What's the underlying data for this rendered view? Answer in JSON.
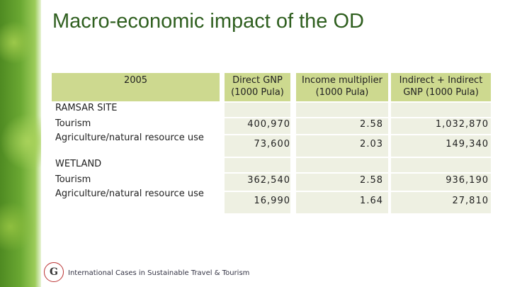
{
  "header": {
    "title": "Macro-economic impact of the OD"
  },
  "table": {
    "columns": [
      "2005",
      "Direct GNP (1000 Pula)",
      "Income multiplier (1000 Pula)",
      "Indirect + Indirect GNP (1000 Pula)"
    ],
    "sections": [
      {
        "name": "RAMSAR SITE",
        "rows": [
          {
            "label": "Tourism",
            "values": [
              "400,970",
              "2.58",
              "1,032,870"
            ]
          },
          {
            "label": "Agriculture/natural resource use",
            "values": [
              "73,600",
              "2.03",
              "149,340"
            ]
          }
        ]
      },
      {
        "name": "WETLAND",
        "rows": [
          {
            "label": "Tourism",
            "values": [
              "362,540",
              "2.58",
              "936,190"
            ]
          },
          {
            "label": "Agriculture/natural resource use",
            "values": [
              "16,990",
              "1.64",
              "27,810"
            ]
          }
        ]
      }
    ]
  },
  "footer": "International Cases in Sustainable Travel & Tourism"
}
